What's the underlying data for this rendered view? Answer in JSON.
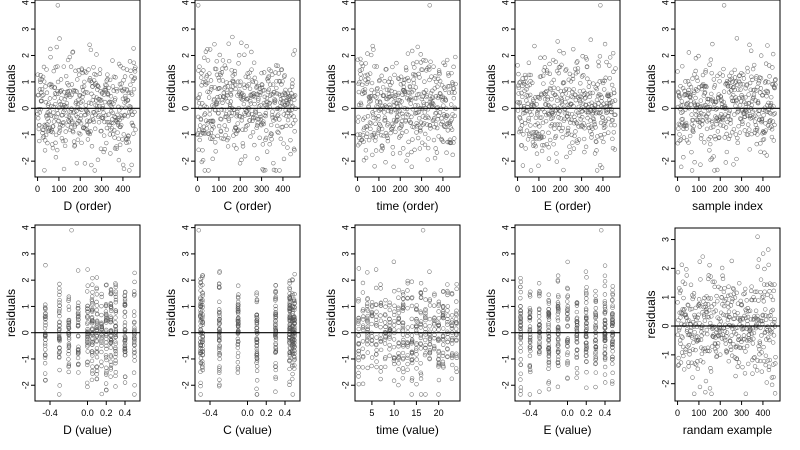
{
  "chart_data": [
    {
      "type": "scatter",
      "xlabel": "D (order)",
      "ylabel": "residuals",
      "xticks": [
        "0",
        "100",
        "200",
        "300",
        "400"
      ],
      "xtick_values": [
        0,
        100,
        200,
        300,
        400
      ],
      "xlim": [
        -12,
        480
      ],
      "yticks": [
        "-2",
        "-1",
        "0",
        "1",
        "2",
        "3",
        "4"
      ],
      "ylim": [
        -2.6,
        4.1
      ],
      "hline": 0,
      "n_points": 460,
      "x_kind": "index",
      "seed": 11,
      "outliers": [
        [
          95,
          3.9
        ]
      ]
    },
    {
      "type": "scatter",
      "xlabel": "C (order)",
      "ylabel": "residuals",
      "xticks": [
        "0",
        "100",
        "200",
        "300",
        "400"
      ],
      "xtick_values": [
        0,
        100,
        200,
        300,
        400
      ],
      "xlim": [
        -12,
        480
      ],
      "yticks": [
        "-2",
        "-1",
        "0",
        "1",
        "2",
        "3",
        "4"
      ],
      "ylim": [
        -2.6,
        4.1
      ],
      "hline": 0,
      "n_points": 460,
      "x_kind": "index",
      "seed": 23,
      "outliers": [
        [
          3,
          3.9
        ]
      ]
    },
    {
      "type": "scatter",
      "xlabel": "time (order)",
      "ylabel": "residuals",
      "xticks": [
        "0",
        "100",
        "200",
        "300",
        "400"
      ],
      "xtick_values": [
        0,
        100,
        200,
        300,
        400
      ],
      "xlim": [
        -12,
        480
      ],
      "yticks": [
        "-2",
        "-1",
        "0",
        "1",
        "2",
        "3",
        "4"
      ],
      "ylim": [
        -2.6,
        4.1
      ],
      "hline": 0,
      "n_points": 460,
      "x_kind": "index",
      "seed": 37,
      "outliers": [
        [
          338,
          3.9
        ]
      ]
    },
    {
      "type": "scatter",
      "xlabel": "E (order)",
      "ylabel": "residuals",
      "xticks": [
        "0",
        "100",
        "200",
        "300",
        "400"
      ],
      "xtick_values": [
        0,
        100,
        200,
        300,
        400
      ],
      "xlim": [
        -12,
        480
      ],
      "yticks": [
        "-2",
        "-1",
        "0",
        "1",
        "2",
        "3",
        "4"
      ],
      "ylim": [
        -2.6,
        4.1
      ],
      "hline": 0,
      "n_points": 460,
      "x_kind": "index",
      "seed": 41,
      "outliers": [
        [
          388,
          3.9
        ]
      ]
    },
    {
      "type": "scatter",
      "xlabel": "sample index",
      "ylabel": "residuals",
      "xticks": [
        "0",
        "100",
        "200",
        "300",
        "400"
      ],
      "xtick_values": [
        0,
        100,
        200,
        300,
        400
      ],
      "xlim": [
        -12,
        480
      ],
      "yticks": [
        "-2",
        "-1",
        "0",
        "1",
        "2",
        "3",
        "4"
      ],
      "ylim": [
        -2.6,
        4.1
      ],
      "hline": 0,
      "n_points": 460,
      "x_kind": "index",
      "seed": 53,
      "outliers": [
        [
          218,
          3.9
        ]
      ]
    },
    {
      "type": "scatter",
      "xlabel": "D (value)",
      "ylabel": "residuals",
      "xticks": [
        "-0.4",
        "0.0",
        "0.2",
        "0.4"
      ],
      "xtick_values": [
        -0.4,
        0.0,
        0.2,
        0.4
      ],
      "xlim": [
        -0.56,
        0.56
      ],
      "yticks": [
        "-2",
        "-1",
        "0",
        "1",
        "2",
        "3",
        "4"
      ],
      "ylim": [
        -2.6,
        4.1
      ],
      "hline": 0,
      "n_points": 460,
      "x_kind": "clustered",
      "x_centers": [
        -0.45,
        -0.3,
        -0.2,
        -0.1,
        0.0,
        0.05,
        0.1,
        0.15,
        0.2,
        0.25,
        0.3,
        0.4,
        0.5
      ],
      "seed": 61,
      "outliers": [
        [
          -0.17,
          3.9
        ]
      ]
    },
    {
      "type": "scatter",
      "xlabel": "C (value)",
      "ylabel": "residuals",
      "xticks": [
        "-0.4",
        "0.0",
        "0.2",
        "0.4"
      ],
      "xtick_values": [
        -0.4,
        0.0,
        0.2,
        0.4
      ],
      "xlim": [
        -0.56,
        0.56
      ],
      "yticks": [
        "-2",
        "-1",
        "0",
        "1",
        "2",
        "3",
        "4"
      ],
      "ylim": [
        -2.6,
        4.1
      ],
      "hline": 0,
      "n_points": 460,
      "x_kind": "clustered",
      "x_centers": [
        -0.5,
        -0.48,
        -0.3,
        -0.1,
        0.1,
        0.3,
        0.45,
        0.48,
        0.5
      ],
      "seed": 71,
      "outliers": [
        [
          -0.52,
          3.9
        ]
      ]
    },
    {
      "type": "scatter",
      "xlabel": "time (value)",
      "ylabel": "residuals",
      "xticks": [
        "5",
        "10",
        "15",
        "20"
      ],
      "xtick_values": [
        5,
        10,
        15,
        20
      ],
      "xlim": [
        1.2,
        24.8
      ],
      "yticks": [
        "-2",
        "-1",
        "0",
        "1",
        "2",
        "3",
        "4"
      ],
      "ylim": [
        -2.6,
        4.1
      ],
      "hline": 0,
      "n_points": 460,
      "x_kind": "clustered",
      "x_centers": [
        2,
        3,
        4,
        5,
        6,
        7,
        8,
        9,
        10,
        11,
        12,
        13,
        14,
        15,
        16,
        17,
        18,
        19,
        20,
        21,
        22,
        23,
        24
      ],
      "seed": 83,
      "outliers": [
        [
          16.5,
          3.9
        ]
      ]
    },
    {
      "type": "scatter",
      "xlabel": "E (value)",
      "ylabel": "residuals",
      "xticks": [
        "-0.4",
        "0.0",
        "0.2",
        "0.4"
      ],
      "xtick_values": [
        -0.4,
        0.0,
        0.2,
        0.4
      ],
      "xlim": [
        -0.56,
        0.56
      ],
      "yticks": [
        "-2",
        "-1",
        "0",
        "1",
        "2",
        "3",
        "4"
      ],
      "ylim": [
        -2.6,
        4.1
      ],
      "hline": 0,
      "n_points": 460,
      "x_kind": "clustered",
      "x_centers": [
        -0.5,
        -0.4,
        -0.3,
        -0.2,
        -0.1,
        0.0,
        0.1,
        0.2,
        0.3,
        0.4,
        0.48
      ],
      "seed": 97,
      "outliers": [
        [
          0.36,
          3.9
        ]
      ]
    },
    {
      "type": "scatter",
      "xlabel": "randam example",
      "ylabel": "residuals",
      "xticks": [
        "0",
        "100",
        "200",
        "300",
        "400"
      ],
      "xtick_values": [
        0,
        100,
        200,
        300,
        400
      ],
      "xlim": [
        -12,
        480
      ],
      "yticks": [
        "-2",
        "-1",
        "0",
        "1",
        "2",
        "3"
      ],
      "ylim": [
        -2.6,
        3.4
      ],
      "hline": 0,
      "n_points": 460,
      "x_kind": "index",
      "seed": 109,
      "outliers": [
        [
          375,
          3.1
        ]
      ]
    }
  ],
  "style": {
    "point_color": "#555555",
    "axis_color": "#000000",
    "background": "#ffffff"
  }
}
